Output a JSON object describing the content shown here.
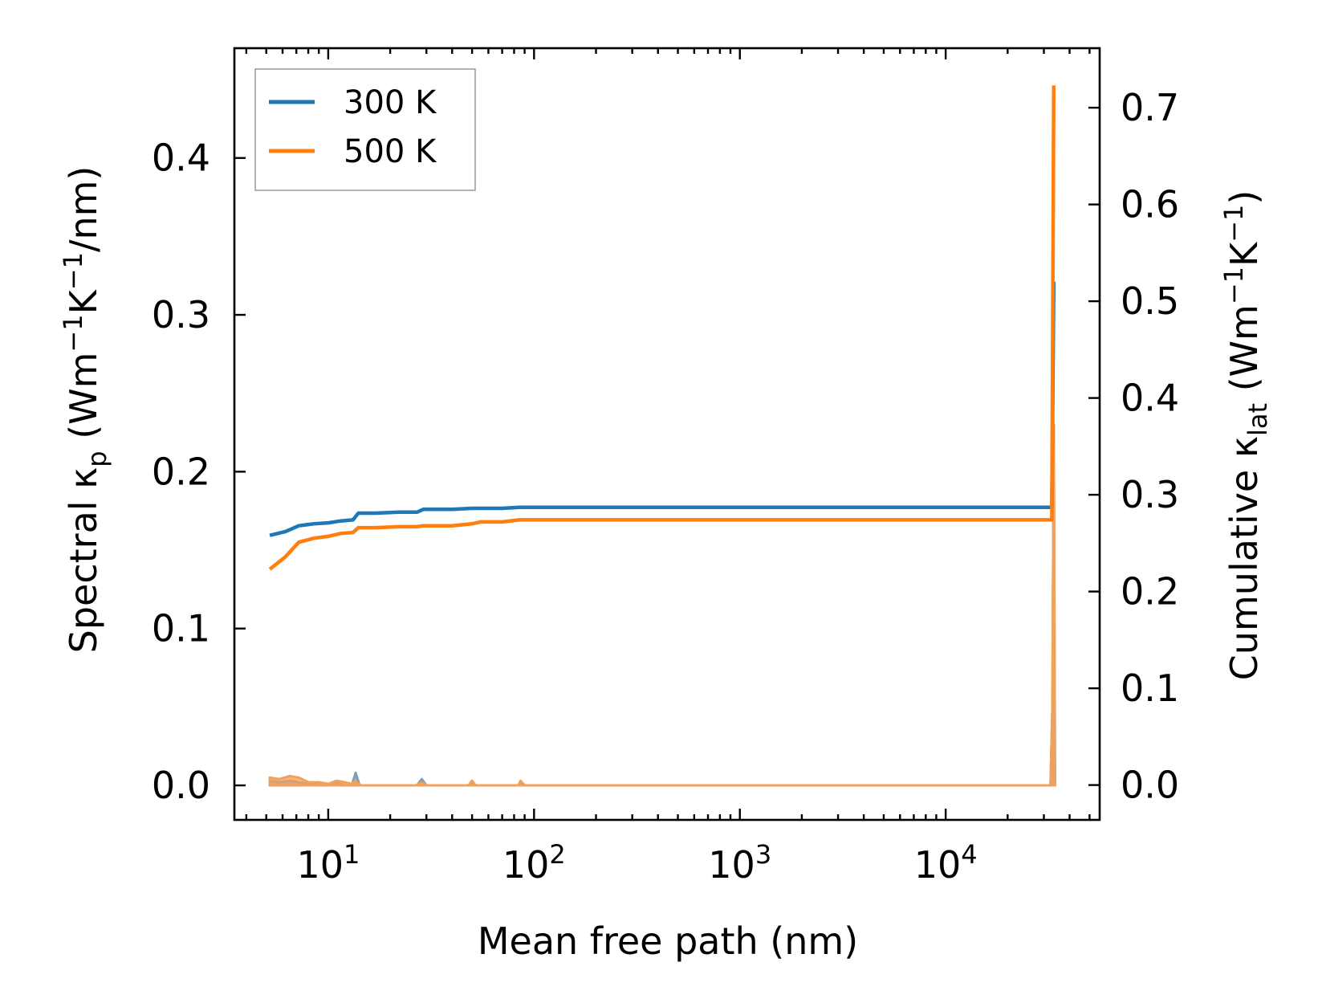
{
  "chart_data": {
    "type": "line",
    "title": "",
    "xlabel": "Mean free path (nm)",
    "ylabel_left": {
      "main": "Spectral κ",
      "sub": "p",
      "rest": " (Wm",
      "exp1": "−1",
      "k": "K",
      "exp2": "−1",
      "tail": "/nm)"
    },
    "ylabel_right": {
      "main": "Cumulative κ",
      "sub": "lat",
      "rest": " (Wm",
      "exp1": "−1",
      "k": "K",
      "exp2": "−1",
      "tail": ")"
    },
    "xscale": "log",
    "xlim": [
      3.5,
      56000
    ],
    "ylim_left": [
      -0.022,
      0.47
    ],
    "ylim_right": [
      -0.036,
      0.7615
    ],
    "x_ticks": [
      {
        "value": 10,
        "base": "10",
        "exp": "1"
      },
      {
        "value": 100,
        "base": "10",
        "exp": "2"
      },
      {
        "value": 1000,
        "base": "10",
        "exp": "3"
      },
      {
        "value": 10000,
        "base": "10",
        "exp": "4"
      }
    ],
    "y_left_ticks": [
      "0.0",
      "0.1",
      "0.2",
      "0.3",
      "0.4"
    ],
    "y_right_ticks": [
      "0.0",
      "0.1",
      "0.2",
      "0.3",
      "0.4",
      "0.5",
      "0.6",
      "0.7"
    ],
    "grid": false,
    "legend_position": "top-left",
    "legend": [
      "300 K",
      "500 K"
    ],
    "colors": {
      "300 K": "#1f77b4",
      "500 K": "#ff7f0e",
      "spectral_fill_300": "#7f9fb5",
      "spectral_fill_500": "#f2a05a"
    },
    "series": [
      {
        "name": "300 K",
        "axis": "right",
        "kind": "cumulative",
        "x": [
          5.2,
          6.2,
          7.2,
          8.5,
          10,
          11.5,
          13.2,
          14,
          17,
          22,
          27,
          29,
          40,
          50,
          55,
          70,
          85,
          100,
          1000,
          10000,
          32000,
          32800,
          33500
        ],
        "y": [
          0.258,
          0.262,
          0.268,
          0.27,
          0.271,
          0.273,
          0.274,
          0.281,
          0.281,
          0.282,
          0.282,
          0.285,
          0.285,
          0.286,
          0.286,
          0.286,
          0.287,
          0.287,
          0.287,
          0.287,
          0.287,
          0.287,
          0.52
        ]
      },
      {
        "name": "500 K",
        "axis": "right",
        "kind": "cumulative",
        "x": [
          5.2,
          6.2,
          7.2,
          8.5,
          10,
          11.5,
          13.2,
          14,
          17,
          22,
          27,
          29,
          40,
          50,
          55,
          70,
          85,
          100,
          1000,
          10000,
          32000,
          32800,
          33500
        ],
        "y": [
          0.223,
          0.236,
          0.251,
          0.255,
          0.257,
          0.26,
          0.261,
          0.266,
          0.266,
          0.267,
          0.267,
          0.268,
          0.268,
          0.27,
          0.272,
          0.272,
          0.274,
          0.274,
          0.274,
          0.274,
          0.274,
          0.274,
          0.723
        ]
      },
      {
        "name": "300 K",
        "axis": "left",
        "kind": "spectral",
        "x": [
          5.2,
          5.8,
          6.5,
          7.2,
          8,
          9,
          10,
          11,
          12,
          13,
          13.6,
          14.2,
          15,
          20,
          27,
          28.5,
          30,
          40,
          48,
          50,
          52,
          56,
          70,
          84,
          86,
          90,
          1000,
          10000,
          31500,
          32300,
          33000,
          33500,
          34000
        ],
        "y": [
          0.003,
          0.002,
          0.003,
          0.002,
          0.001,
          0.002,
          0.0,
          0.002,
          0.0,
          0.0,
          0.008,
          0.0,
          0.0,
          0.0,
          0.0,
          0.004,
          0.0,
          0.0,
          0.0,
          0.002,
          0.0,
          0.0,
          0.0,
          0.0,
          0.002,
          0.0,
          0.0,
          0.0,
          0.0,
          0.0,
          0.05,
          0.23,
          0.0
        ]
      },
      {
        "name": "500 K",
        "axis": "left",
        "kind": "spectral",
        "x": [
          5.2,
          5.8,
          6.5,
          7.2,
          8,
          9,
          10,
          11,
          12,
          13,
          13.6,
          14.2,
          15,
          20,
          27,
          28.5,
          30,
          40,
          48,
          50,
          52,
          56,
          70,
          84,
          86,
          90,
          1000,
          10000,
          31500,
          32300,
          33000,
          33500,
          34000
        ],
        "y": [
          0.005,
          0.004,
          0.006,
          0.005,
          0.002,
          0.002,
          0.001,
          0.003,
          0.002,
          0.001,
          0.003,
          0.0,
          0.0,
          0.0,
          0.0,
          0.002,
          0.0,
          0.0,
          0.0,
          0.003,
          0.0,
          0.0,
          0.0,
          0.0,
          0.003,
          0.0,
          0.0,
          0.0,
          0.0,
          0.0,
          0.05,
          0.23,
          0.0
        ]
      }
    ]
  }
}
